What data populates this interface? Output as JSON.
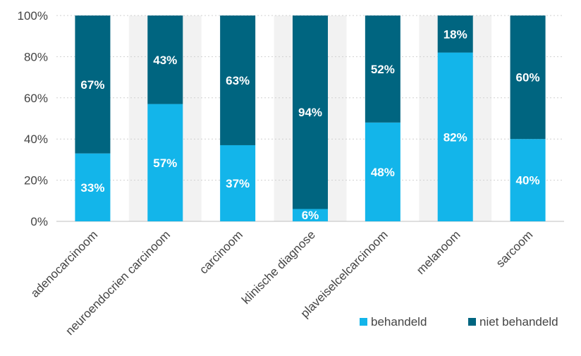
{
  "chart_data": {
    "type": "bar",
    "stacked": true,
    "percent": true,
    "categories": [
      "adenocarcinoom",
      "neuroendocrien carcinoom",
      "carcinoom",
      "klinische diagnose",
      "plaveiselcelcarcinoom",
      "melanoom",
      "sarcoom"
    ],
    "series": [
      {
        "name": "behandeld",
        "color": "#13b5ea",
        "values": [
          33,
          57,
          37,
          6,
          48,
          82,
          40
        ],
        "labels": [
          "33%",
          "57%",
          "37%",
          "6%",
          "48%",
          "82%",
          "40%"
        ]
      },
      {
        "name": "niet behandeld",
        "color": "#006580",
        "values": [
          67,
          43,
          63,
          94,
          52,
          18,
          60
        ],
        "labels": [
          "67%",
          "43%",
          "63%",
          "94%",
          "52%",
          "18%",
          "60%"
        ]
      }
    ],
    "ylim": [
      0,
      100
    ],
    "yticks": [
      0,
      20,
      40,
      60,
      80,
      100
    ],
    "ytick_labels": [
      "0%",
      "20%",
      "40%",
      "60%",
      "80%",
      "100%"
    ],
    "grid": true,
    "legend_position": "bottom-right",
    "band_color": "#f2f2f2"
  }
}
